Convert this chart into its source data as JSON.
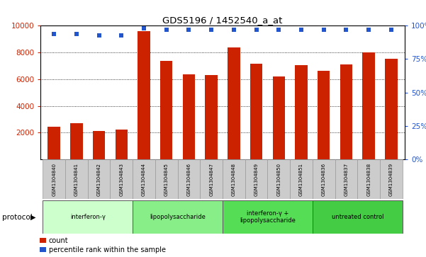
{
  "title": "GDS5196 / 1452540_a_at",
  "samples": [
    "GSM1304840",
    "GSM1304841",
    "GSM1304842",
    "GSM1304843",
    "GSM1304844",
    "GSM1304845",
    "GSM1304846",
    "GSM1304847",
    "GSM1304848",
    "GSM1304849",
    "GSM1304850",
    "GSM1304851",
    "GSM1304836",
    "GSM1304837",
    "GSM1304838",
    "GSM1304839"
  ],
  "counts": [
    2450,
    2700,
    2100,
    2250,
    9600,
    7350,
    6350,
    6300,
    8400,
    7150,
    6200,
    7050,
    6650,
    7100,
    8000,
    7500
  ],
  "percentiles": [
    94,
    94,
    93,
    93,
    98,
    97,
    97,
    97,
    97,
    97,
    97,
    97,
    97,
    97,
    97,
    97
  ],
  "bar_color": "#cc2200",
  "dot_color": "#2255cc",
  "ylim_left": [
    0,
    10000
  ],
  "ylim_right": [
    0,
    100
  ],
  "yticks_left": [
    2000,
    4000,
    6000,
    8000,
    10000
  ],
  "yticks_right": [
    0,
    25,
    50,
    75,
    100
  ],
  "groups": [
    {
      "label": "interferon-γ",
      "start": 0,
      "end": 4,
      "color": "#ccffcc"
    },
    {
      "label": "lipopolysaccharide",
      "start": 4,
      "end": 8,
      "color": "#88ee88"
    },
    {
      "label": "interferon-γ +\nlipopolysaccharide",
      "start": 8,
      "end": 12,
      "color": "#55dd55"
    },
    {
      "label": "untreated control",
      "start": 12,
      "end": 16,
      "color": "#44cc44"
    }
  ],
  "protocol_label": "protocol",
  "legend_count_label": "count",
  "legend_percentile_label": "percentile rank within the sample",
  "background_color": "#ffffff",
  "plot_bg_color": "#ffffff",
  "grid_color": "#000000",
  "tick_label_color_left": "#cc2200",
  "tick_label_color_right": "#2255cc",
  "sample_box_color": "#cccccc",
  "sample_box_edge": "#999999"
}
